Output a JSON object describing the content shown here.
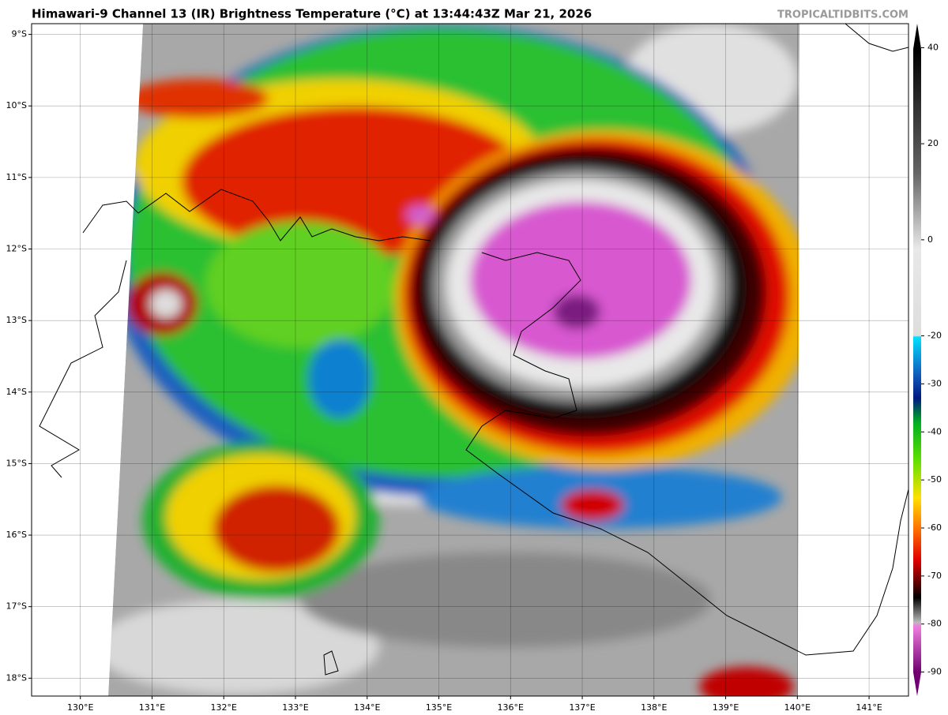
{
  "chart_data": {
    "type": "map",
    "title": "Himawari-9 Channel 13 (IR) Brightness Temperature (°C) at 13:44:43Z Mar 21, 2026",
    "source": "TROPICALTIDBITS.COM",
    "xlim": [
      129.32,
      141.55
    ],
    "ylim": [
      -18.25,
      -8.85
    ],
    "xticks": [
      {
        "value": 130,
        "label": "130°E"
      },
      {
        "value": 131,
        "label": "131°E"
      },
      {
        "value": 132,
        "label": "132°E"
      },
      {
        "value": 133,
        "label": "133°E"
      },
      {
        "value": 134,
        "label": "134°E"
      },
      {
        "value": 135,
        "label": "135°E"
      },
      {
        "value": 136,
        "label": "136°E"
      },
      {
        "value": 137,
        "label": "137°E"
      },
      {
        "value": 138,
        "label": "138°E"
      },
      {
        "value": 139,
        "label": "139°E"
      },
      {
        "value": 140,
        "label": "140°E"
      },
      {
        "value": 141,
        "label": "141°E"
      }
    ],
    "yticks": [
      {
        "value": -9,
        "label": "9°S"
      },
      {
        "value": -10,
        "label": "10°S"
      },
      {
        "value": -11,
        "label": "11°S"
      },
      {
        "value": -12,
        "label": "12°S"
      },
      {
        "value": -13,
        "label": "13°S"
      },
      {
        "value": -14,
        "label": "14°S"
      },
      {
        "value": -15,
        "label": "15°S"
      },
      {
        "value": -16,
        "label": "16°S"
      },
      {
        "value": -17,
        "label": "17°S"
      },
      {
        "value": -18,
        "label": "18°S"
      }
    ],
    "grid": true,
    "colorbar": {
      "lim": [
        -95,
        45
      ],
      "ticks": [
        40,
        20,
        0,
        -20,
        -30,
        -40,
        -50,
        -60,
        -70,
        -80,
        -90
      ]
    }
  }
}
